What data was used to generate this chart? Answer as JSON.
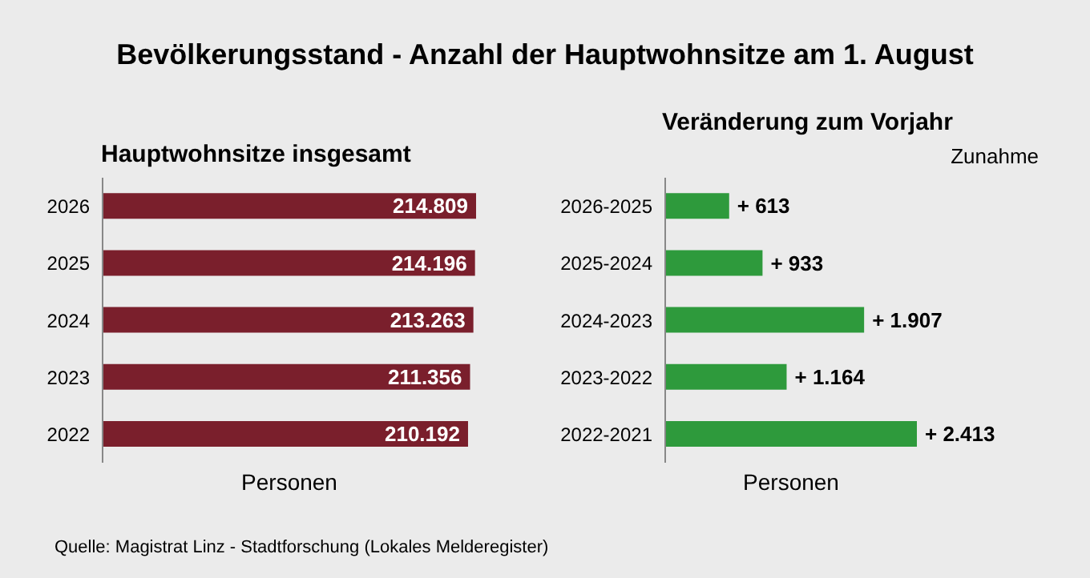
{
  "chart_data": [
    {
      "type": "bar",
      "orientation": "horizontal",
      "title": "Bevölkerungsstand - Anzahl der Hauptwohnsitze am 1. August",
      "subtitle": "Hauptwohnsitze insgesamt",
      "xlabel": "Personen",
      "categories": [
        "2026",
        "2025",
        "2024",
        "2023",
        "2022"
      ],
      "values": [
        214809,
        214196,
        213263,
        211356,
        210192
      ],
      "value_labels": [
        "214.809",
        "214.196",
        "213.263",
        "211.356",
        "210.192"
      ],
      "color": "#7a1f2c",
      "annotations": [
        "Quelle: Magistrat Linz - Stadtforschung (Lokales Melderegister)"
      ]
    },
    {
      "type": "bar",
      "orientation": "horizontal",
      "title": "Veränderung zum Vorjahr",
      "annotations": [
        "Zunahme"
      ],
      "xlabel": "Personen",
      "categories": [
        "2026-2025",
        "2025-2024",
        "2024-2023",
        "2023-2022",
        "2022-2021"
      ],
      "values": [
        613,
        933,
        1907,
        1164,
        2413
      ],
      "value_labels": [
        "+ 613",
        "+ 933",
        "+ 1.907",
        "+ 1.164",
        "+ 2.413"
      ],
      "color": "#2e9a3c"
    }
  ]
}
